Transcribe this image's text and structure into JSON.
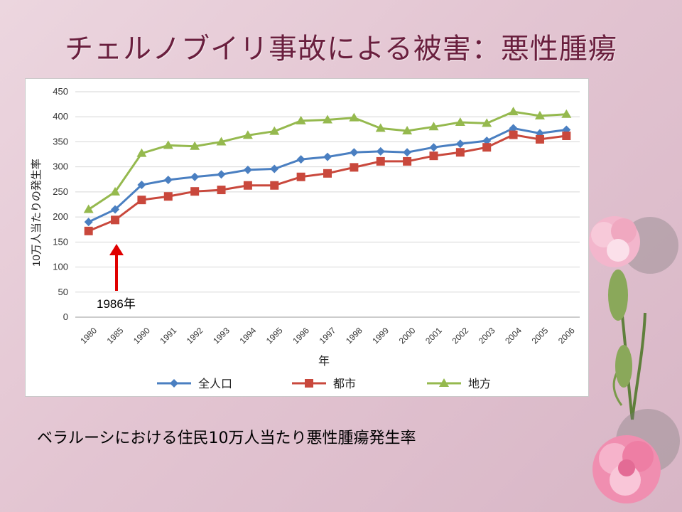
{
  "slide": {
    "title": "チェルノブイリ事故による被害：悪性腫瘍",
    "caption": "ベラルーシにおける住民10万人当たり悪性腫瘍発生率"
  },
  "chart_data": {
    "type": "line",
    "title": "",
    "xlabel": "年",
    "ylabel": "10万人当たりの発生率",
    "ylim": [
      0,
      450
    ],
    "yticks": [
      0,
      50,
      100,
      150,
      200,
      250,
      300,
      350,
      400,
      450
    ],
    "grid": true,
    "legend_position": "bottom",
    "categories": [
      "1980",
      "1985",
      "1990",
      "1991",
      "1992",
      "1993",
      "1994",
      "1995",
      "1996",
      "1997",
      "1998",
      "1999",
      "2000",
      "2001",
      "2002",
      "2003",
      "2004",
      "2005",
      "2006"
    ],
    "series": [
      {
        "name": "全人口",
        "color": "#4a7fc1",
        "marker": "diamond",
        "values": [
          190,
          215,
          264,
          274,
          280,
          285,
          294,
          296,
          315,
          320,
          329,
          331,
          329,
          339,
          346,
          352,
          377,
          367,
          374
        ]
      },
      {
        "name": "都市",
        "color": "#c9483c",
        "marker": "square",
        "values": [
          172,
          194,
          234,
          241,
          251,
          254,
          263,
          263,
          280,
          287,
          299,
          311,
          311,
          322,
          329,
          339,
          364,
          355,
          362
        ]
      },
      {
        "name": "地方",
        "color": "#95b94e",
        "marker": "triangle",
        "values": [
          215,
          250,
          327,
          343,
          341,
          350,
          363,
          371,
          392,
          394,
          398,
          377,
          372,
          380,
          389,
          387,
          410,
          402,
          405
        ]
      }
    ],
    "annotations": [
      {
        "text": "1986年",
        "category": "1985",
        "note": "arrow"
      }
    ]
  }
}
